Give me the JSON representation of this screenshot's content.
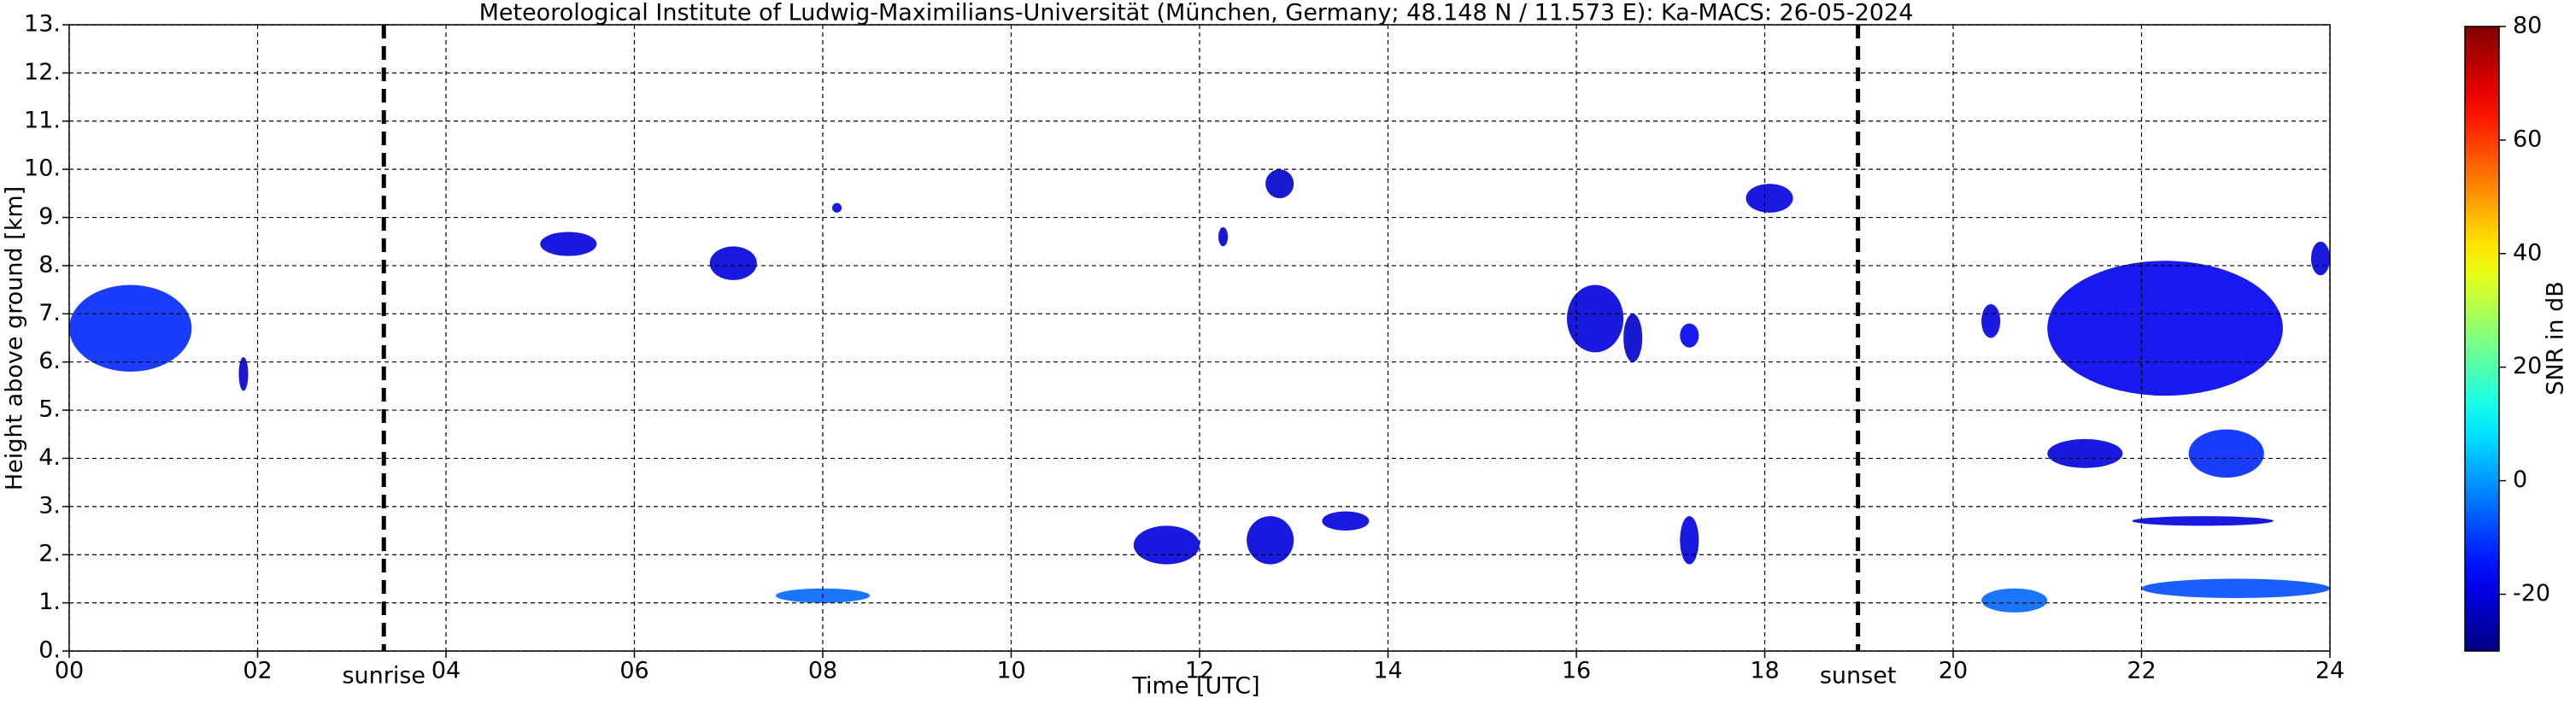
{
  "chart_data": {
    "type": "time-height",
    "title": "Meteorological Institute of Ludwig-Maximilians-Universität (München, Germany; 48.148 N / 11.573 E):    Ka-MACS: 26-05-2024",
    "x_label": "Time [UTC]",
    "y_label": "Height above ground [km]",
    "xlim": [
      0,
      24
    ],
    "xticks": [
      {
        "value": 0,
        "label": "00"
      },
      {
        "value": 2,
        "label": "02"
      },
      {
        "value": 4,
        "label": "04"
      },
      {
        "value": 6,
        "label": "06"
      },
      {
        "value": 8,
        "label": "08"
      },
      {
        "value": 10,
        "label": "10"
      },
      {
        "value": 12,
        "label": "12"
      },
      {
        "value": 14,
        "label": "14"
      },
      {
        "value": 16,
        "label": "16"
      },
      {
        "value": 18,
        "label": "18"
      },
      {
        "value": 20,
        "label": "20"
      },
      {
        "value": 22,
        "label": "22"
      },
      {
        "value": 24,
        "label": "24"
      }
    ],
    "ylim": [
      0,
      13
    ],
    "yticks": [
      {
        "value": 0,
        "label": "0."
      },
      {
        "value": 1,
        "label": "1."
      },
      {
        "value": 2,
        "label": "2."
      },
      {
        "value": 3,
        "label": "3."
      },
      {
        "value": 4,
        "label": "4."
      },
      {
        "value": 5,
        "label": "5."
      },
      {
        "value": 6,
        "label": "6."
      },
      {
        "value": 7,
        "label": "7."
      },
      {
        "value": 8,
        "label": "8."
      },
      {
        "value": 9,
        "label": "9."
      },
      {
        "value": 10,
        "label": "10."
      },
      {
        "value": 11,
        "label": "11."
      },
      {
        "value": 12,
        "label": "12."
      },
      {
        "value": 13,
        "label": "13."
      }
    ],
    "grid": true,
    "annotations": [
      {
        "x": 3.34,
        "label": "sunrise"
      },
      {
        "x": 18.99,
        "label": "sunset"
      }
    ],
    "colorbar": {
      "label": "SNR in dB",
      "lim": [
        -30,
        80
      ],
      "ticks": [
        -20,
        0,
        20,
        40,
        60,
        80
      ],
      "colormap": "jet"
    },
    "echoes": [
      {
        "t": [
          0.0,
          1.3
        ],
        "h": [
          5.8,
          7.6
        ],
        "snr": -12
      },
      {
        "t": [
          1.8,
          1.9
        ],
        "h": [
          5.4,
          6.1
        ],
        "snr": -22
      },
      {
        "t": [
          5.0,
          5.6
        ],
        "h": [
          8.2,
          8.7
        ],
        "snr": -20
      },
      {
        "t": [
          6.8,
          7.3
        ],
        "h": [
          7.7,
          8.4
        ],
        "snr": -20
      },
      {
        "t": [
          8.1,
          8.2
        ],
        "h": [
          9.1,
          9.3
        ],
        "snr": -20
      },
      {
        "t": [
          11.3,
          12.0
        ],
        "h": [
          1.8,
          2.6
        ],
        "snr": -20
      },
      {
        "t": [
          12.5,
          13.0
        ],
        "h": [
          1.8,
          2.8
        ],
        "snr": -20
      },
      {
        "t": [
          13.3,
          13.8
        ],
        "h": [
          2.5,
          2.9
        ],
        "snr": -20
      },
      {
        "t": [
          12.2,
          12.3
        ],
        "h": [
          8.4,
          8.8
        ],
        "snr": -22
      },
      {
        "t": [
          12.7,
          13.0
        ],
        "h": [
          9.4,
          10.0
        ],
        "snr": -22
      },
      {
        "t": [
          17.8,
          18.3
        ],
        "h": [
          9.1,
          9.7
        ],
        "snr": -20
      },
      {
        "t": [
          15.9,
          16.5
        ],
        "h": [
          6.2,
          7.6
        ],
        "snr": -20
      },
      {
        "t": [
          16.5,
          16.7
        ],
        "h": [
          6.0,
          7.0
        ],
        "snr": -22
      },
      {
        "t": [
          17.1,
          17.3
        ],
        "h": [
          6.3,
          6.8
        ],
        "snr": -18
      },
      {
        "t": [
          17.1,
          17.3
        ],
        "h": [
          1.8,
          2.8
        ],
        "snr": -20
      },
      {
        "t": [
          20.3,
          20.5
        ],
        "h": [
          6.5,
          7.2
        ],
        "snr": -20
      },
      {
        "t": [
          21.0,
          23.5
        ],
        "h": [
          5.3,
          8.1
        ],
        "snr": -18
      },
      {
        "t": [
          22.5,
          23.3
        ],
        "h": [
          3.6,
          4.6
        ],
        "snr": -12
      },
      {
        "t": [
          21.0,
          21.8
        ],
        "h": [
          3.8,
          4.4
        ],
        "snr": -20
      },
      {
        "t": [
          21.9,
          23.4
        ],
        "h": [
          2.6,
          2.8
        ],
        "snr": -20
      },
      {
        "t": [
          23.8,
          24.0
        ],
        "h": [
          7.8,
          8.5
        ],
        "snr": -20
      },
      {
        "t": [
          7.5,
          8.5
        ],
        "h": [
          1.0,
          1.3
        ],
        "snr": -5
      },
      {
        "t": [
          20.3,
          21.0
        ],
        "h": [
          0.8,
          1.3
        ],
        "snr": -5
      },
      {
        "t": [
          22.0,
          24.0
        ],
        "h": [
          1.1,
          1.5
        ],
        "snr": -8
      }
    ]
  }
}
